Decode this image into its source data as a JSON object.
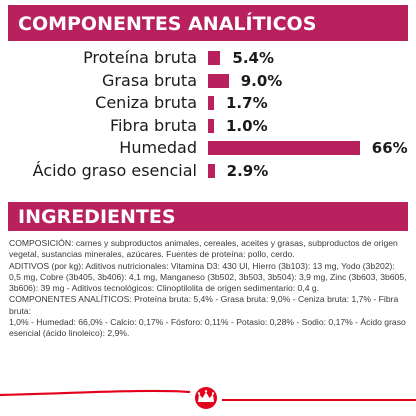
{
  "analysis": {
    "title": "COMPONENTES ANALÍTICOS",
    "items": [
      {
        "label": "Proteína bruta",
        "value_text": "5.4%",
        "value": 5.4
      },
      {
        "label": "Grasa bruta",
        "value_text": "9.0%",
        "value": 9.0
      },
      {
        "label": "Ceniza bruta",
        "value_text": "1.7%",
        "value": 1.7
      },
      {
        "label": "Fibra bruta",
        "value_text": "1.0%",
        "value": 1.0
      },
      {
        "label": "Humedad",
        "value_text": "66%",
        "value": 66
      },
      {
        "label": "Ácido graso esencial",
        "value_text": "2.9%",
        "value": 2.9
      }
    ]
  },
  "ingredients": {
    "title": "INGREDIENTES",
    "lines": [
      "COMPOSICIÓN: carnes y subproductos animales, cereales, aceites y grasas, subproductos de origen",
      "vegetal, sustancias minerales, azúcares. Fuentes de proteína: pollo, cerdo.",
      "ADITIVOS (por kg): Aditivos nutricionales: Vitamina D3: 430 UI, Hierro (3b103): 13 mg, Yodo (3b202):",
      "0,5 mg, Cobre (3b405, 3b406): 4,1 mg, Manganeso (3b502, 3b503, 3b504): 3,9 mg, Zinc (3b603, 3b605,",
      "3b606): 39 mg - Aditivos tecnológicos: Clinoptilolita de origen sedimentario: 0,4 g.",
      "COMPONENTES ANALÍTICOS: Proteína bruta: 5,4% - Grasa bruta: 9,0% - Ceniza bruta: 1,7% - Fibra bruta:",
      "1,0% - Humedad: 66,0% - Calcio: 0,17% - Fósforo: 0,11% - Potasio: 0,28% - Sodio: 0,17% - Ácido graso",
      "esencial (ácido linoleico): 2,9%."
    ]
  },
  "colors": {
    "accent": "#b8215e",
    "footer_red": "#e2001a"
  },
  "footer": {
    "logo_icon": "royal-canin-crown-logo"
  }
}
